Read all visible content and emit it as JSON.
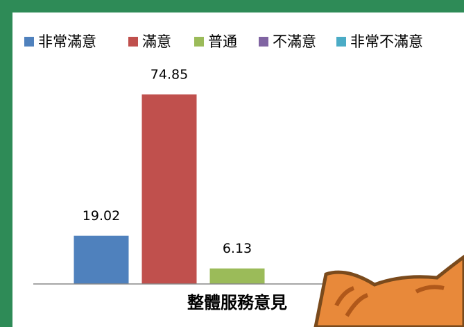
{
  "chart_data": {
    "type": "bar",
    "categories": [
      "整體服務意見"
    ],
    "series": [
      {
        "name": "非常滿意",
        "color": "#4f81bd",
        "values": [
          19.02
        ]
      },
      {
        "name": "滿意",
        "color": "#c0504d",
        "values": [
          74.85
        ]
      },
      {
        "name": "普通",
        "color": "#9bbb59",
        "values": [
          6.13
        ]
      },
      {
        "name": "不滿意",
        "color": "#8064a2",
        "values": [
          null
        ]
      },
      {
        "name": "非常不滿意",
        "color": "#4bacc6",
        "values": [
          null
        ]
      }
    ],
    "ylim": [
      0,
      75
    ],
    "legend": "top"
  }
}
